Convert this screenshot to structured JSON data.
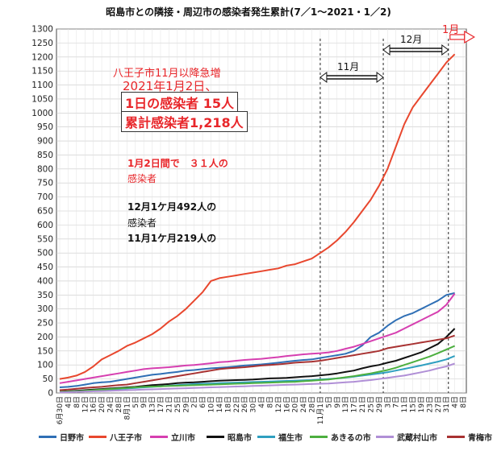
{
  "chart_data": {
    "type": "line",
    "title": "昭島市との隣接・周辺市の感染者発生累計(7／1～2021・1／2)",
    "ylim": [
      0,
      1300
    ],
    "y_ticks": [
      0,
      50,
      100,
      150,
      200,
      250,
      300,
      350,
      400,
      450,
      500,
      550,
      600,
      650,
      700,
      750,
      800,
      850,
      900,
      950,
      1000,
      1050,
      1100,
      1150,
      1200,
      1250,
      1300
    ],
    "x_labels": [
      "6月30日",
      "4日",
      "8日",
      "12日",
      "16日",
      "20日",
      "24日",
      "28日",
      "8月1日",
      "5日",
      "9日",
      "13日",
      "17日",
      "21日",
      "25日",
      "29日",
      "2日",
      "6日",
      "10日",
      "14日",
      "18日",
      "22日",
      "26日",
      "30日",
      "4日",
      "8日",
      "12日",
      "16日",
      "20日",
      "24日",
      "28日",
      "11月1日",
      "5日",
      "9日",
      "13日",
      "17日",
      "21日",
      "25日",
      "29日",
      "3日",
      "7日",
      "11日",
      "15日",
      "19日",
      "23日",
      "27日",
      "31日",
      "4日",
      "8日"
    ],
    "x_dates": [
      "2020-06-30",
      "2020-07-04",
      "2020-07-08",
      "2020-07-12",
      "2020-07-16",
      "2020-07-20",
      "2020-07-24",
      "2020-07-28",
      "2020-08-01",
      "2020-08-05",
      "2020-08-09",
      "2020-08-13",
      "2020-08-17",
      "2020-08-21",
      "2020-08-25",
      "2020-08-29",
      "2020-09-02",
      "2020-09-06",
      "2020-09-10",
      "2020-09-14",
      "2020-09-18",
      "2020-09-22",
      "2020-09-26",
      "2020-09-30",
      "2020-10-04",
      "2020-10-08",
      "2020-10-12",
      "2020-10-16",
      "2020-10-20",
      "2020-10-24",
      "2020-10-28",
      "2020-11-01",
      "2020-11-05",
      "2020-11-09",
      "2020-11-13",
      "2020-11-17",
      "2020-11-21",
      "2020-11-25",
      "2020-11-29",
      "2020-12-03",
      "2020-12-07",
      "2020-12-11",
      "2020-12-15",
      "2020-12-19",
      "2020-12-23",
      "2020-12-27",
      "2020-12-31",
      "2021-01-04",
      "2021-01-08"
    ],
    "series": [
      {
        "name": "日野市",
        "color": "#2f6fb5",
        "values": [
          20,
          22,
          25,
          30,
          35,
          38,
          40,
          45,
          50,
          55,
          60,
          65,
          68,
          72,
          75,
          80,
          82,
          85,
          88,
          90,
          92,
          95,
          98,
          100,
          102,
          105,
          108,
          112,
          115,
          118,
          120,
          125,
          130,
          135,
          140,
          150,
          170,
          200,
          215,
          240,
          260,
          275,
          285,
          300,
          315,
          330,
          350,
          357,
          null
        ]
      },
      {
        "name": "八王子市",
        "color": "#e8472e",
        "values": [
          50,
          55,
          62,
          75,
          95,
          120,
          135,
          150,
          168,
          180,
          195,
          210,
          230,
          255,
          275,
          300,
          330,
          360,
          400,
          410,
          415,
          420,
          425,
          430,
          435,
          440,
          445,
          455,
          460,
          470,
          480,
          500,
          520,
          545,
          575,
          610,
          650,
          690,
          740,
          800,
          880,
          960,
          1020,
          1060,
          1100,
          1140,
          1180,
          1210,
          null
        ]
      },
      {
        "name": "立川市",
        "color": "#d63fb0",
        "values": [
          35,
          40,
          45,
          50,
          55,
          60,
          65,
          70,
          75,
          80,
          85,
          88,
          90,
          92,
          95,
          98,
          100,
          103,
          106,
          110,
          112,
          115,
          118,
          120,
          122,
          125,
          128,
          132,
          135,
          138,
          140,
          142,
          145,
          150,
          158,
          165,
          175,
          185,
          195,
          205,
          215,
          230,
          245,
          260,
          275,
          290,
          315,
          355,
          null
        ]
      },
      {
        "name": "昭島市",
        "color": "#111111",
        "values": [
          5,
          6,
          8,
          10,
          12,
          14,
          16,
          18,
          20,
          22,
          25,
          28,
          30,
          32,
          35,
          37,
          38,
          40,
          42,
          44,
          45,
          46,
          47,
          48,
          50,
          52,
          53,
          54,
          56,
          58,
          60,
          63,
          66,
          70,
          75,
          80,
          88,
          95,
          100,
          108,
          115,
          125,
          135,
          145,
          160,
          175,
          200,
          230,
          null
        ]
      },
      {
        "name": "福生市",
        "color": "#2f9fc0",
        "values": [
          3,
          4,
          5,
          6,
          8,
          10,
          12,
          14,
          16,
          18,
          20,
          22,
          24,
          26,
          28,
          30,
          32,
          33,
          34,
          35,
          36,
          37,
          38,
          39,
          40,
          41,
          42,
          43,
          44,
          45,
          46,
          48,
          50,
          52,
          55,
          58,
          62,
          66,
          70,
          74,
          80,
          86,
          92,
          98,
          105,
          112,
          120,
          132,
          null
        ]
      },
      {
        "name": "あきるの市",
        "color": "#4caf3f",
        "values": [
          4,
          5,
          6,
          8,
          10,
          12,
          14,
          16,
          18,
          20,
          22,
          23,
          24,
          25,
          26,
          27,
          28,
          29,
          30,
          31,
          32,
          33,
          34,
          35,
          36,
          37,
          38,
          39,
          40,
          42,
          44,
          46,
          48,
          52,
          56,
          60,
          65,
          70,
          76,
          82,
          90,
          100,
          110,
          120,
          130,
          142,
          155,
          168,
          null
        ]
      },
      {
        "name": "武蔵村山市",
        "color": "#b08fd6",
        "values": [
          2,
          3,
          4,
          5,
          6,
          7,
          8,
          9,
          10,
          11,
          12,
          13,
          14,
          15,
          16,
          17,
          18,
          19,
          20,
          21,
          22,
          23,
          24,
          25,
          26,
          27,
          28,
          29,
          30,
          31,
          32,
          33,
          34,
          36,
          38,
          40,
          43,
          46,
          50,
          54,
          58,
          62,
          68,
          74,
          80,
          88,
          95,
          105,
          null
        ]
      },
      {
        "name": "青梅市",
        "color": "#a83232",
        "values": [
          10,
          12,
          15,
          18,
          20,
          22,
          25,
          28,
          30,
          35,
          40,
          45,
          50,
          55,
          60,
          65,
          70,
          75,
          80,
          85,
          88,
          90,
          92,
          95,
          98,
          100,
          102,
          105,
          108,
          110,
          112,
          115,
          120,
          125,
          130,
          135,
          140,
          145,
          150,
          160,
          165,
          170,
          175,
          180,
          185,
          190,
          195,
          205,
          null
        ]
      }
    ],
    "annotations": {
      "line1": "八王子市11月以降急増",
      "line2": "2021年1月2日、",
      "box1": "1日の感染者 15人",
      "box2": "累計感染者1,218人",
      "note1": "1月2日間で　３１人の",
      "note1b": "感染者",
      "note2": "12月1ケ月492人の",
      "note2b": "感染者",
      "note3": "11月1ケ月219人の",
      "span_nov": "11月",
      "span_dec": "12月",
      "span_jan": "1月"
    }
  }
}
